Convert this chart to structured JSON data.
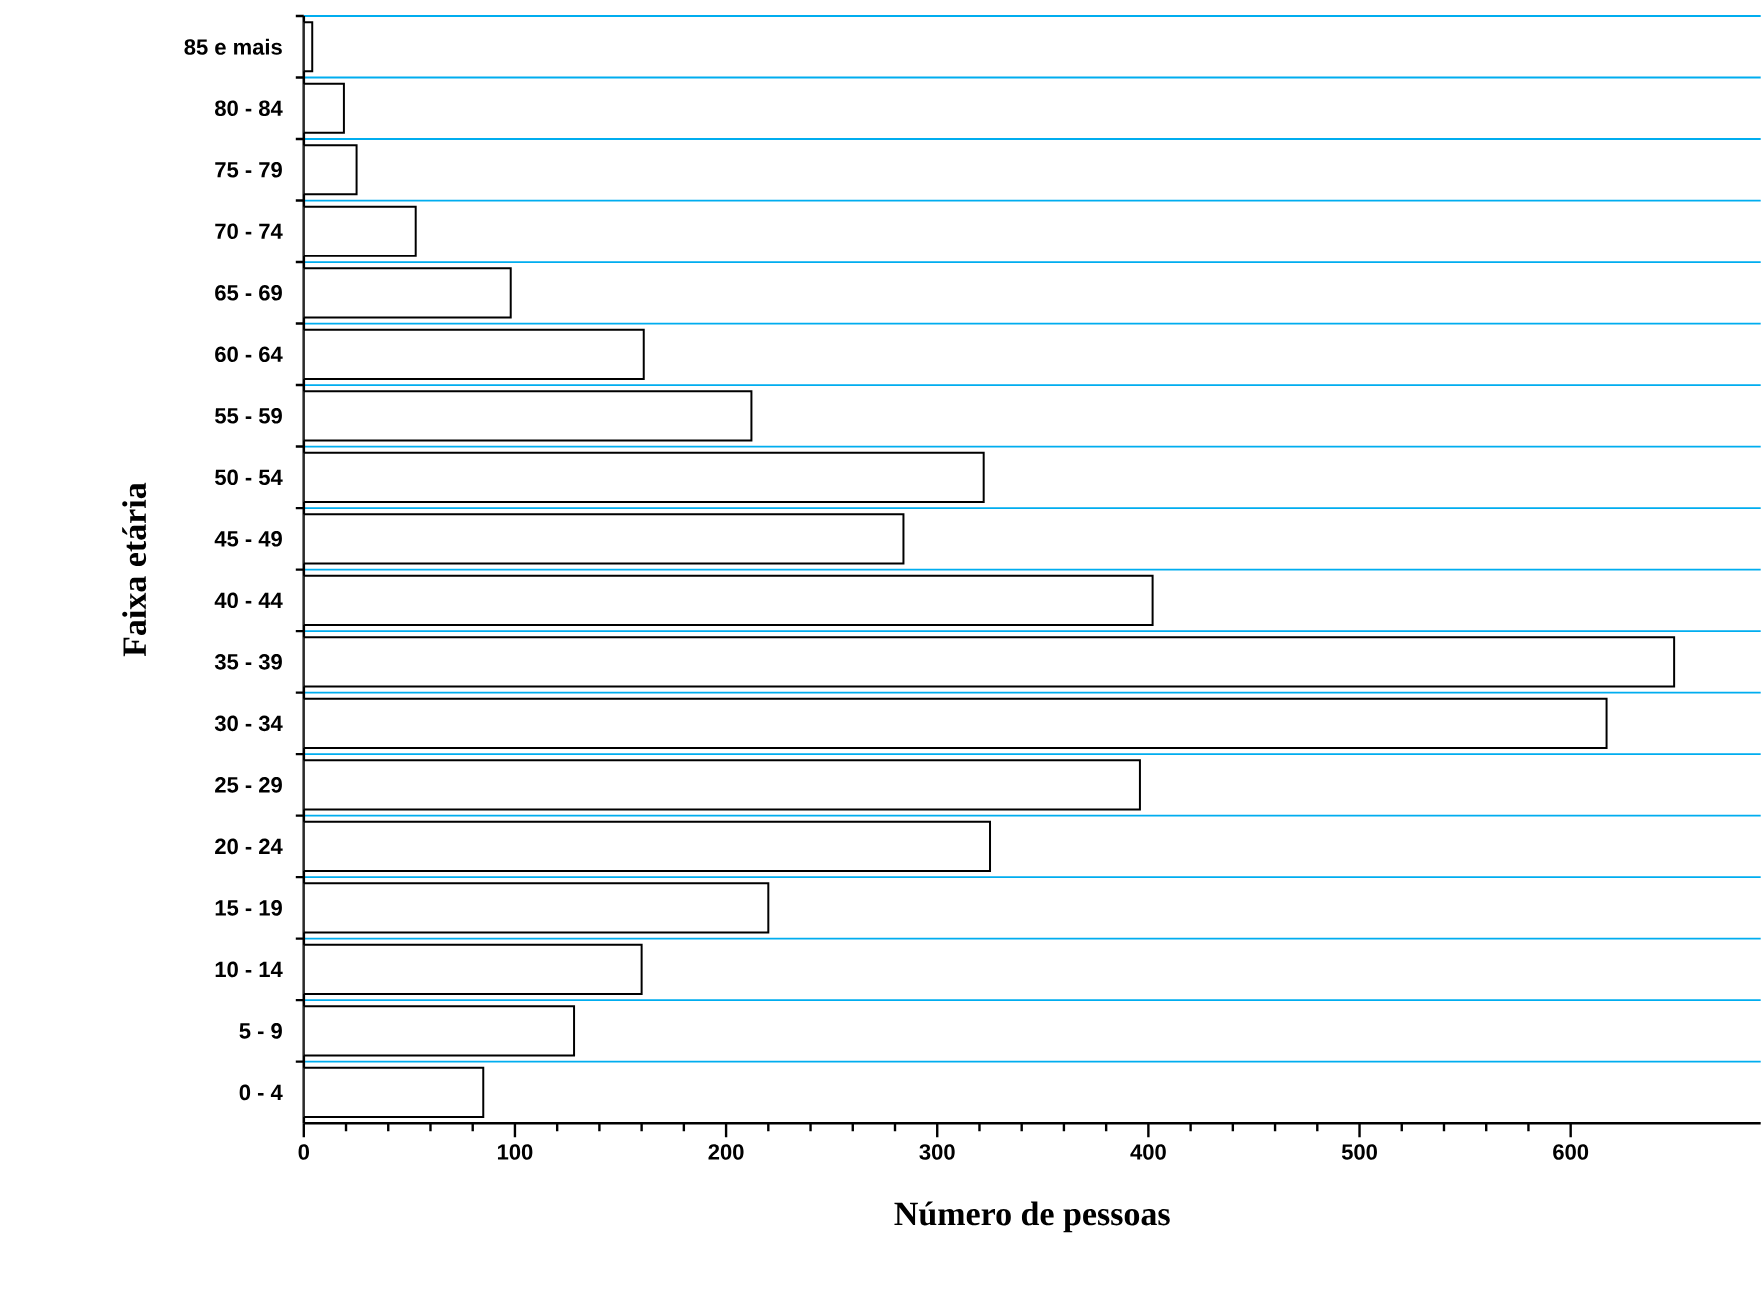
{
  "chart_data": {
    "type": "bar",
    "orientation": "horizontal",
    "xlabel": "Número de pessoas",
    "ylabel": "Faixa etária",
    "categories": [
      "85 e mais",
      "80 - 84",
      "75 - 79",
      "70 - 74",
      "65 - 69",
      "60 - 64",
      "55 - 59",
      "50 - 54",
      "45 - 49",
      "40 - 44",
      "35 - 39",
      "30 - 34",
      "25 - 29",
      "20 - 24",
      "15 - 19",
      "10 - 14",
      "5 - 9",
      "0 - 4"
    ],
    "values": [
      4,
      19,
      25,
      53,
      98,
      161,
      212,
      322,
      284,
      402,
      649,
      617,
      396,
      325,
      220,
      160,
      128,
      85
    ],
    "color": "#ffffff",
    "xlim": [
      0,
      690
    ],
    "xticks": [
      0,
      100,
      200,
      300,
      400,
      500,
      600
    ],
    "grid": "y"
  }
}
